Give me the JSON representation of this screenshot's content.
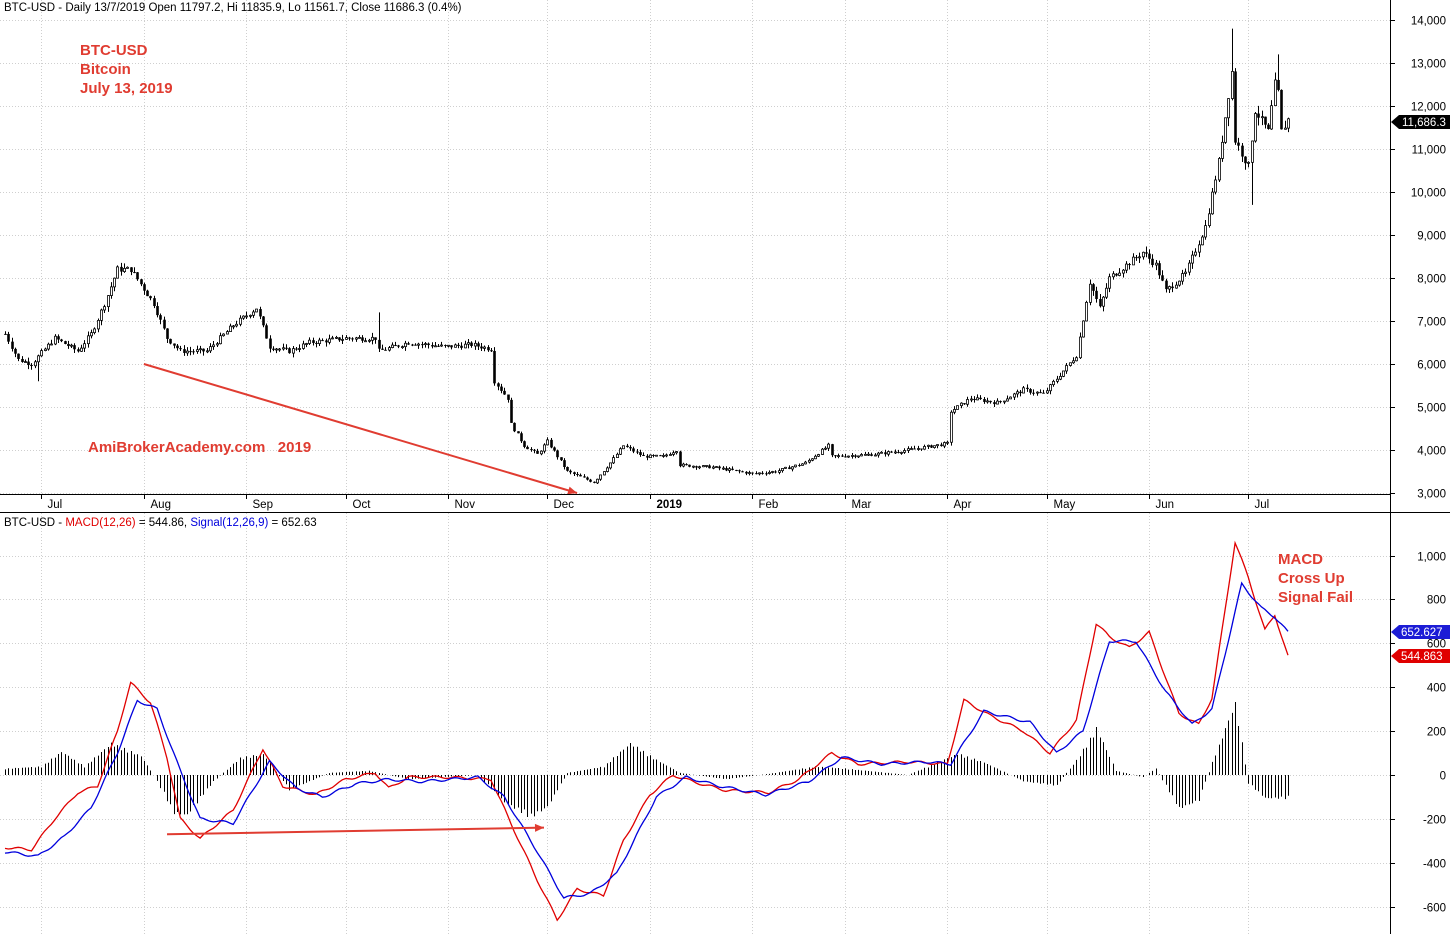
{
  "price_panel": {
    "header": "BTC-USD - Daily 13/7/2019 Open 11797.2, Hi 11835.9, Lo 11561.7, Close 11686.3 (0.4%)",
    "annotation_lines": [
      "BTC-USD",
      "Bitcoin",
      "July 13, 2019"
    ],
    "watermark": "AmiBrokerAcademy.com   2019",
    "last_price_label": "11,686.3"
  },
  "macd_panel": {
    "header_prefix": "BTC-USD - ",
    "header_macd_label": "MACD(12,26)",
    "header_macd_value": " = 544.86, ",
    "header_signal_label": "Signal(12,26,9)",
    "header_signal_value": " = 652.63",
    "annotation_lines": [
      "MACD",
      "Cross Up",
      "Signal Fail"
    ],
    "signal_tag": "652.627",
    "macd_tag": "544.863"
  },
  "colors": {
    "annotation": "#e03c31",
    "candle": "#000000",
    "macd_line": "#e00000",
    "signal_line": "#0000dd",
    "grid": "#cfcfcf",
    "signal_tag_bg": "#1c1cd6",
    "macd_tag_bg": "#e00000"
  },
  "chart_data": [
    {
      "type": "candlestick",
      "title": "BTC-USD",
      "x_range": [
        "2018-06-20",
        "2019-07-13"
      ],
      "ylim": [
        3000,
        14000
      ],
      "y_ticks": [
        "14,000",
        "13,000",
        "12,000",
        "11,000",
        "10,000",
        "9,000",
        "8,000",
        "7,000",
        "6,000",
        "5,000",
        "4,000",
        "3,000"
      ],
      "x_tick_labels": [
        "Jul",
        "Aug",
        "Sep",
        "Oct",
        "Nov",
        "Dec",
        "2019",
        "Feb",
        "Mar",
        "Apr",
        "May",
        "Jun",
        "Jul"
      ],
      "x_tick_dates": [
        "2018-07-01",
        "2018-08-01",
        "2018-09-01",
        "2018-10-01",
        "2018-11-01",
        "2018-12-01",
        "2019-01-01",
        "2019-02-01",
        "2019-03-01",
        "2019-04-01",
        "2019-05-01",
        "2019-06-01",
        "2019-07-01"
      ],
      "close_path": [
        [
          "2018-06-20",
          6700
        ],
        [
          "2018-06-24",
          6100
        ],
        [
          "2018-06-28",
          6000
        ],
        [
          "2018-07-05",
          6600
        ],
        [
          "2018-07-12",
          6300
        ],
        [
          "2018-07-16",
          6700
        ],
        [
          "2018-07-20",
          7400
        ],
        [
          "2018-07-24",
          8200
        ],
        [
          "2018-07-28",
          8200
        ],
        [
          "2018-08-04",
          7400
        ],
        [
          "2018-08-08",
          6600
        ],
        [
          "2018-08-12",
          6300
        ],
        [
          "2018-08-20",
          6300
        ],
        [
          "2018-08-28",
          6900
        ],
        [
          "2018-09-04",
          7300
        ],
        [
          "2018-09-08",
          6400
        ],
        [
          "2018-09-14",
          6300
        ],
        [
          "2018-09-20",
          6500
        ],
        [
          "2018-10-01",
          6600
        ],
        [
          "2018-10-10",
          6600
        ],
        [
          "2018-10-11",
          6300
        ],
        [
          "2018-10-20",
          6500
        ],
        [
          "2018-10-31",
          6400
        ],
        [
          "2018-11-08",
          6450
        ],
        [
          "2018-11-14",
          6350
        ],
        [
          "2018-11-15",
          5600
        ],
        [
          "2018-11-19",
          5200
        ],
        [
          "2018-11-20",
          4600
        ],
        [
          "2018-11-24",
          4100
        ],
        [
          "2018-11-28",
          3900
        ],
        [
          "2018-12-01",
          4200
        ],
        [
          "2018-12-07",
          3500
        ],
        [
          "2018-12-15",
          3250
        ],
        [
          "2018-12-20",
          3700
        ],
        [
          "2018-12-24",
          4100
        ],
        [
          "2018-12-30",
          3850
        ],
        [
          "2019-01-05",
          3850
        ],
        [
          "2019-01-09",
          4000
        ],
        [
          "2019-01-10",
          3650
        ],
        [
          "2019-01-20",
          3600
        ],
        [
          "2019-02-01",
          3450
        ],
        [
          "2019-02-08",
          3500
        ],
        [
          "2019-02-17",
          3700
        ],
        [
          "2019-02-24",
          4100
        ],
        [
          "2019-02-25",
          3850
        ],
        [
          "2019-03-10",
          3900
        ],
        [
          "2019-03-20",
          4000
        ],
        [
          "2019-04-01",
          4150
        ],
        [
          "2019-04-02",
          4900
        ],
        [
          "2019-04-08",
          5200
        ],
        [
          "2019-04-16",
          5100
        ],
        [
          "2019-04-24",
          5400
        ],
        [
          "2019-04-30",
          5300
        ],
        [
          "2019-05-10",
          6200
        ],
        [
          "2019-05-14",
          7900
        ],
        [
          "2019-05-17",
          7300
        ],
        [
          "2019-05-20",
          8000
        ],
        [
          "2019-05-30",
          8600
        ],
        [
          "2019-06-03",
          8300
        ],
        [
          "2019-06-06",
          7700
        ],
        [
          "2019-06-12",
          8100
        ],
        [
          "2019-06-18",
          9200
        ],
        [
          "2019-06-22",
          10700
        ],
        [
          "2019-06-26",
          12800
        ],
        [
          "2019-06-27",
          11200
        ],
        [
          "2019-07-01",
          10600
        ],
        [
          "2019-07-03",
          11900
        ],
        [
          "2019-07-07",
          11400
        ],
        [
          "2019-07-09",
          12500
        ],
        [
          "2019-07-10",
          12300
        ],
        [
          "2019-07-11",
          11400
        ],
        [
          "2019-07-13",
          11686
        ]
      ],
      "high_spikes": [
        [
          "2018-10-11",
          7200
        ],
        [
          "2019-06-26",
          13800
        ],
        [
          "2019-07-10",
          13200
        ]
      ],
      "low_spikes": [
        [
          "2018-06-30",
          5600
        ],
        [
          "2019-07-02",
          9700
        ]
      ],
      "trend_arrow": {
        "from": [
          "2018-08-01",
          6000
        ],
        "to": [
          "2018-12-10",
          3000
        ]
      }
    },
    {
      "type": "line+histogram",
      "title": "MACD(12,26), Signal(12,26,9)",
      "ylim": [
        -700,
        1150
      ],
      "y_ticks": [
        "1,000",
        "800",
        "600",
        "400",
        "200",
        "0",
        "-200",
        "-400",
        "-600"
      ],
      "series": [
        {
          "name": "MACD(12,26)",
          "points": [
            [
              "2018-06-20",
              -330
            ],
            [
              "2018-06-28",
              -340
            ],
            [
              "2018-07-05",
              -200
            ],
            [
              "2018-07-12",
              -80
            ],
            [
              "2018-07-18",
              -50
            ],
            [
              "2018-07-24",
              200
            ],
            [
              "2018-07-28",
              420
            ],
            [
              "2018-08-03",
              330
            ],
            [
              "2018-08-08",
              80
            ],
            [
              "2018-08-12",
              -200
            ],
            [
              "2018-08-18",
              -290
            ],
            [
              "2018-08-28",
              -160
            ],
            [
              "2018-09-06",
              120
            ],
            [
              "2018-09-12",
              -50
            ],
            [
              "2018-09-22",
              -90
            ],
            [
              "2018-10-01",
              -20
            ],
            [
              "2018-10-10",
              10
            ],
            [
              "2018-10-14",
              -60
            ],
            [
              "2018-10-20",
              -10
            ],
            [
              "2018-11-01",
              -10
            ],
            [
              "2018-11-14",
              -20
            ],
            [
              "2018-11-20",
              -220
            ],
            [
              "2018-11-28",
              -480
            ],
            [
              "2018-12-04",
              -660
            ],
            [
              "2018-12-10",
              -520
            ],
            [
              "2018-12-18",
              -550
            ],
            [
              "2018-12-24",
              -300
            ],
            [
              "2019-01-01",
              -90
            ],
            [
              "2019-01-08",
              0
            ],
            [
              "2019-01-14",
              -30
            ],
            [
              "2019-01-24",
              -70
            ],
            [
              "2019-02-06",
              -80
            ],
            [
              "2019-02-15",
              -20
            ],
            [
              "2019-02-25",
              100
            ],
            [
              "2019-03-05",
              50
            ],
            [
              "2019-03-20",
              60
            ],
            [
              "2019-04-01",
              50
            ],
            [
              "2019-04-06",
              340
            ],
            [
              "2019-04-14",
              270
            ],
            [
              "2019-04-24",
              200
            ],
            [
              "2019-05-02",
              100
            ],
            [
              "2019-05-10",
              250
            ],
            [
              "2019-05-16",
              690
            ],
            [
              "2019-05-20",
              630
            ],
            [
              "2019-05-26",
              580
            ],
            [
              "2019-06-01",
              650
            ],
            [
              "2019-06-10",
              280
            ],
            [
              "2019-06-16",
              230
            ],
            [
              "2019-06-20",
              350
            ],
            [
              "2019-06-27",
              1060
            ],
            [
              "2019-07-01",
              900
            ],
            [
              "2019-07-06",
              660
            ],
            [
              "2019-07-09",
              730
            ],
            [
              "2019-07-13",
              540
            ]
          ]
        },
        {
          "name": "Signal(12,26,9)",
          "points": [
            [
              "2018-06-20",
              -350
            ],
            [
              "2018-06-30",
              -370
            ],
            [
              "2018-07-08",
              -280
            ],
            [
              "2018-07-16",
              -150
            ],
            [
              "2018-07-24",
              100
            ],
            [
              "2018-07-30",
              340
            ],
            [
              "2018-08-05",
              300
            ],
            [
              "2018-08-12",
              20
            ],
            [
              "2018-08-18",
              -200
            ],
            [
              "2018-08-28",
              -220
            ],
            [
              "2018-09-08",
              60
            ],
            [
              "2018-09-16",
              -60
            ],
            [
              "2018-09-24",
              -100
            ],
            [
              "2018-10-04",
              -40
            ],
            [
              "2018-10-14",
              -20
            ],
            [
              "2018-10-24",
              -30
            ],
            [
              "2018-11-10",
              -10
            ],
            [
              "2018-11-18",
              -100
            ],
            [
              "2018-11-28",
              -350
            ],
            [
              "2018-12-06",
              -560
            ],
            [
              "2018-12-14",
              -540
            ],
            [
              "2018-12-22",
              -450
            ],
            [
              "2019-01-03",
              -100
            ],
            [
              "2019-01-12",
              -10
            ],
            [
              "2019-01-22",
              -50
            ],
            [
              "2019-02-05",
              -90
            ],
            [
              "2019-02-18",
              -30
            ],
            [
              "2019-02-28",
              80
            ],
            [
              "2019-03-12",
              50
            ],
            [
              "2019-03-26",
              60
            ],
            [
              "2019-04-02",
              50
            ],
            [
              "2019-04-12",
              290
            ],
            [
              "2019-04-26",
              240
            ],
            [
              "2019-05-04",
              100
            ],
            [
              "2019-05-12",
              200
            ],
            [
              "2019-05-20",
              610
            ],
            [
              "2019-05-28",
              610
            ],
            [
              "2019-06-06",
              380
            ],
            [
              "2019-06-14",
              230
            ],
            [
              "2019-06-20",
              300
            ],
            [
              "2019-06-29",
              870
            ],
            [
              "2019-07-05",
              760
            ],
            [
              "2019-07-09",
              720
            ],
            [
              "2019-07-13",
              650
            ]
          ]
        }
      ],
      "histogram_path": [
        [
          "2018-06-20",
          30
        ],
        [
          "2018-07-01",
          40
        ],
        [
          "2018-07-07",
          110
        ],
        [
          "2018-07-14",
          40
        ],
        [
          "2018-07-22",
          150
        ],
        [
          "2018-07-31",
          90
        ],
        [
          "2018-08-04",
          0
        ],
        [
          "2018-08-10",
          -180
        ],
        [
          "2018-08-14",
          -190
        ],
        [
          "2018-08-22",
          -30
        ],
        [
          "2018-08-30",
          80
        ],
        [
          "2018-09-06",
          100
        ],
        [
          "2018-09-14",
          -70
        ],
        [
          "2018-09-26",
          10
        ],
        [
          "2018-10-08",
          20
        ],
        [
          "2018-10-20",
          -20
        ],
        [
          "2018-11-10",
          0
        ],
        [
          "2018-11-18",
          -130
        ],
        [
          "2018-11-26",
          -200
        ],
        [
          "2018-12-01",
          -150
        ],
        [
          "2018-12-07",
          10
        ],
        [
          "2018-12-18",
          40
        ],
        [
          "2018-12-26",
          150
        ],
        [
          "2019-01-02",
          80
        ],
        [
          "2019-01-10",
          10
        ],
        [
          "2019-01-24",
          -20
        ],
        [
          "2019-02-08",
          10
        ],
        [
          "2019-02-20",
          40
        ],
        [
          "2019-03-01",
          30
        ],
        [
          "2019-03-20",
          0
        ],
        [
          "2019-04-04",
          100
        ],
        [
          "2019-04-12",
          60
        ],
        [
          "2019-04-24",
          -30
        ],
        [
          "2019-05-04",
          -50
        ],
        [
          "2019-05-10",
          70
        ],
        [
          "2019-05-16",
          220
        ],
        [
          "2019-05-22",
          20
        ],
        [
          "2019-05-30",
          -10
        ],
        [
          "2019-06-03",
          30
        ],
        [
          "2019-06-10",
          -160
        ],
        [
          "2019-06-16",
          -120
        ],
        [
          "2019-06-20",
          60
        ],
        [
          "2019-06-27",
          340
        ],
        [
          "2019-07-01",
          -40
        ],
        [
          "2019-07-06",
          -110
        ],
        [
          "2019-07-13",
          -110
        ]
      ],
      "sideways_arrow": {
        "from": [
          "2018-08-08",
          -270
        ],
        "to": [
          "2018-11-30",
          -240
        ]
      }
    }
  ]
}
